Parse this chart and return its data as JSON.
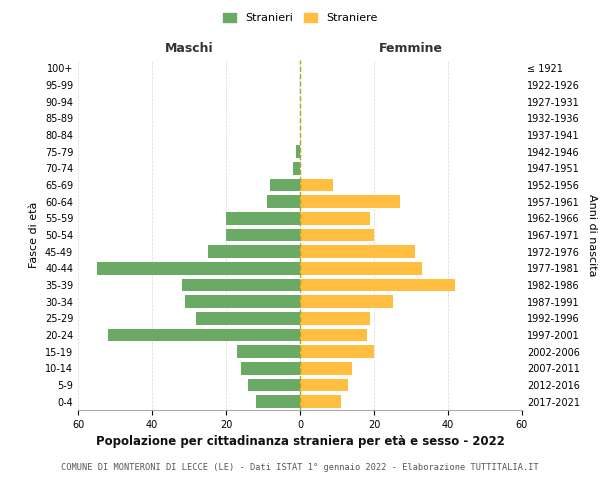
{
  "age_groups": [
    "0-4",
    "5-9",
    "10-14",
    "15-19",
    "20-24",
    "25-29",
    "30-34",
    "35-39",
    "40-44",
    "45-49",
    "50-54",
    "55-59",
    "60-64",
    "65-69",
    "70-74",
    "75-79",
    "80-84",
    "85-89",
    "90-94",
    "95-99",
    "100+"
  ],
  "birth_years": [
    "2017-2021",
    "2012-2016",
    "2007-2011",
    "2002-2006",
    "1997-2001",
    "1992-1996",
    "1987-1991",
    "1982-1986",
    "1977-1981",
    "1972-1976",
    "1967-1971",
    "1962-1966",
    "1957-1961",
    "1952-1956",
    "1947-1951",
    "1942-1946",
    "1937-1941",
    "1932-1936",
    "1927-1931",
    "1922-1926",
    "≤ 1921"
  ],
  "maschi": [
    12,
    14,
    16,
    17,
    52,
    28,
    31,
    32,
    55,
    25,
    20,
    20,
    9,
    8,
    2,
    1,
    0,
    0,
    0,
    0,
    0
  ],
  "femmine": [
    11,
    13,
    14,
    20,
    18,
    19,
    25,
    42,
    33,
    31,
    20,
    19,
    27,
    9,
    0,
    0,
    0,
    0,
    0,
    0,
    0
  ],
  "maschi_color": "#6aaa64",
  "femmine_color": "#ffbe40",
  "background_color": "#ffffff",
  "grid_color": "#cccccc",
  "title": "Popolazione per cittadinanza straniera per età e sesso - 2022",
  "subtitle": "COMUNE DI MONTERONI DI LECCE (LE) - Dati ISTAT 1° gennaio 2022 - Elaborazione TUTTITALIA.IT",
  "label_maschi": "Maschi",
  "label_femmine": "Femmine",
  "ylabel_left": "Fasce di età",
  "ylabel_right": "Anni di nascita",
  "legend_maschi": "Stranieri",
  "legend_femmine": "Straniere",
  "xlim": 60,
  "center_line_color": "#aaa820"
}
